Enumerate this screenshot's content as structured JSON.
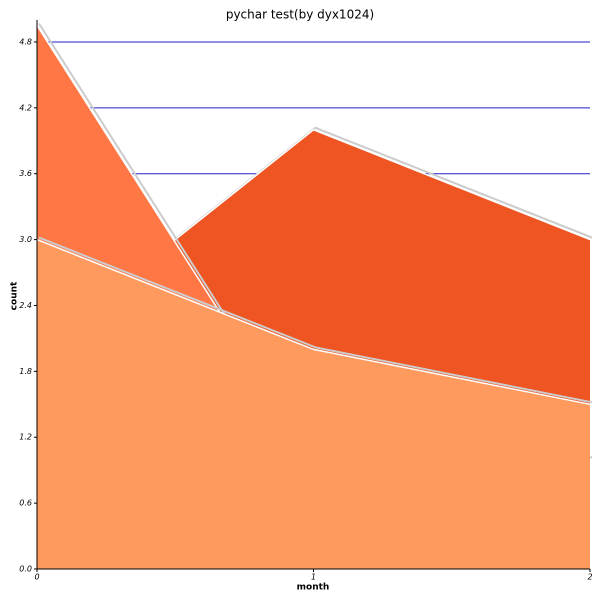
{
  "chart_data": {
    "type": "area",
    "title": "pychar test(by dyx1024)",
    "x_label": "month",
    "y_label": "count",
    "x": [
      0,
      1,
      2
    ],
    "series": [
      {
        "color": "#ee5522",
        "values": [
          2.0,
          4.0,
          3.0
        ]
      },
      {
        "color": "#ff7744",
        "values": [
          4.95,
          1.0,
          1.0
        ]
      },
      {
        "color": "#ff9a5e",
        "values": [
          3.0,
          2.0,
          1.5
        ]
      }
    ],
    "xlim": [
      0,
      2
    ],
    "xticks": [
      0,
      1,
      2
    ],
    "ylim": [
      0,
      5
    ],
    "yticks": [
      {
        "value": 0,
        "label": "0.0"
      },
      {
        "value": 0.6,
        "label": "0.6"
      },
      {
        "value": 1.2,
        "label": "1.2"
      },
      {
        "value": 1.8,
        "label": "1.8"
      },
      {
        "value": 2.4,
        "label": "2.4"
      },
      {
        "value": 3,
        "label": "3.0"
      },
      {
        "value": 3.6,
        "label": "3.6"
      },
      {
        "value": 4.2,
        "label": "4.2"
      },
      {
        "value": 4.8,
        "label": "4.8"
      }
    ],
    "grid": true,
    "grid_color": "#2222cc"
  }
}
